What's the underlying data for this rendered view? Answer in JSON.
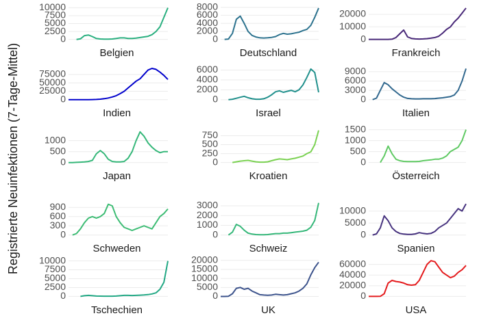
{
  "ylabel": "Registrierte Neuinfektionen (7-Tage-Mittel)",
  "chart_data": [
    {
      "type": "line",
      "title": "Belgien",
      "color": "#29af7f",
      "ylim": [
        -500,
        10300
      ],
      "yticks": [
        0,
        2500,
        5000,
        7500,
        10000
      ],
      "grid": true,
      "values": [
        null,
        null,
        0,
        200,
        1200,
        1400,
        900,
        300,
        150,
        100,
        100,
        150,
        300,
        500,
        500,
        300,
        300,
        400,
        600,
        800,
        1000,
        1500,
        2500,
        4000,
        7000,
        10000
      ]
    },
    {
      "type": "line",
      "title": "Deutschland",
      "color": "#2c728e",
      "ylim": [
        -400,
        8100
      ],
      "yticks": [
        0,
        2000,
        4000,
        6000,
        8000
      ],
      "grid": true,
      "values": [
        null,
        0,
        100,
        1500,
        5000,
        5800,
        4000,
        2000,
        1000,
        600,
        400,
        350,
        400,
        500,
        700,
        1200,
        1500,
        1300,
        1400,
        1600,
        1800,
        2200,
        2500,
        3500,
        5500,
        7800
      ]
    },
    {
      "type": "line",
      "title": "Frankreich",
      "color": "#482878",
      "ylim": [
        -1300,
        26000
      ],
      "yticks": [
        0,
        10000,
        20000
      ],
      "grid": true,
      "values": [
        0,
        0,
        0,
        0,
        0,
        0,
        200,
        1500,
        4500,
        7500,
        2000,
        800,
        400,
        300,
        400,
        600,
        1000,
        1500,
        2500,
        5000,
        8000,
        10000,
        14000,
        17000,
        21000,
        25000
      ]
    },
    {
      "type": "line",
      "title": "Indien",
      "color": "#0000cc",
      "ylim": [
        -4500,
        97000
      ],
      "yticks": [
        0,
        25000,
        50000,
        75000
      ],
      "grid": true,
      "values": [
        0,
        0,
        0,
        0,
        0,
        100,
        300,
        800,
        1500,
        3000,
        5000,
        8000,
        12000,
        18000,
        25000,
        35000,
        45000,
        55000,
        62000,
        75000,
        88000,
        93000,
        90000,
        82000,
        72000,
        60000
      ]
    },
    {
      "type": "line",
      "title": "Israel",
      "color": "#21908c",
      "ylim": [
        -300,
        6600
      ],
      "yticks": [
        0,
        2000,
        4000,
        6000
      ],
      "grid": true,
      "values": [
        null,
        null,
        0,
        100,
        300,
        500,
        700,
        400,
        200,
        100,
        100,
        200,
        500,
        1000,
        1600,
        1800,
        1500,
        1700,
        1900,
        1600,
        2000,
        3000,
        4500,
        6200,
        5500,
        1500
      ]
    },
    {
      "type": "line",
      "title": "Italien",
      "color": "#31688e",
      "ylim": [
        -500,
        10500
      ],
      "yticks": [
        0,
        3000,
        6000,
        9000
      ],
      "grid": true,
      "values": [
        null,
        0,
        500,
        3000,
        5500,
        4800,
        3500,
        2500,
        1500,
        800,
        400,
        300,
        250,
        250,
        300,
        300,
        300,
        350,
        500,
        600,
        800,
        1000,
        1500,
        3000,
        6000,
        10000
      ]
    },
    {
      "type": "line",
      "title": "Japan",
      "color": "#35b779",
      "ylim": [
        -70,
        1550
      ],
      "yticks": [
        0,
        500,
        1000
      ],
      "grid": true,
      "values": [
        0,
        0,
        10,
        20,
        30,
        50,
        100,
        400,
        550,
        400,
        150,
        50,
        30,
        30,
        50,
        200,
        500,
        1000,
        1400,
        1200,
        900,
        700,
        550,
        450,
        500,
        500
      ]
    },
    {
      "type": "line",
      "title": "Kroatien",
      "color": "#7ad151",
      "ylim": [
        -45,
        950
      ],
      "yticks": [
        0,
        250,
        500,
        750
      ],
      "grid": true,
      "values": [
        null,
        null,
        null,
        0,
        20,
        40,
        50,
        60,
        40,
        20,
        10,
        10,
        20,
        50,
        80,
        100,
        90,
        80,
        100,
        120,
        150,
        180,
        250,
        300,
        500,
        900
      ]
    },
    {
      "type": "line",
      "title": "Österreich",
      "color": "#5ec962",
      "ylim": [
        -75,
        1550
      ],
      "yticks": [
        0,
        500,
        1000,
        1500
      ],
      "grid": true,
      "values": [
        null,
        null,
        null,
        0,
        300,
        750,
        400,
        150,
        80,
        50,
        40,
        40,
        40,
        50,
        80,
        100,
        120,
        150,
        150,
        200,
        300,
        500,
        600,
        700,
        1000,
        1500
      ]
    },
    {
      "type": "line",
      "title": "Schweden",
      "color": "#3dbc74",
      "ylim": [
        -50,
        1060
      ],
      "yticks": [
        0,
        300,
        600,
        900
      ],
      "grid": true,
      "values": [
        null,
        0,
        50,
        200,
        400,
        550,
        600,
        550,
        600,
        700,
        1000,
        950,
        600,
        400,
        250,
        200,
        150,
        200,
        250,
        300,
        250,
        200,
        400,
        600,
        700,
        850
      ]
    },
    {
      "type": "line",
      "title": "Schweiz",
      "color": "#35b779",
      "ylim": [
        -160,
        3350
      ],
      "yticks": [
        0,
        1000,
        2000,
        3000
      ],
      "grid": true,
      "values": [
        null,
        null,
        0,
        300,
        1100,
        900,
        500,
        200,
        100,
        50,
        30,
        30,
        50,
        100,
        150,
        150,
        200,
        200,
        250,
        300,
        350,
        400,
        500,
        800,
        1500,
        3300
      ]
    },
    {
      "type": "line",
      "title": "Spanien",
      "color": "#46327e",
      "ylim": [
        -650,
        13600
      ],
      "yticks": [
        0,
        5000,
        10000
      ],
      "grid": true,
      "values": [
        null,
        0,
        500,
        3000,
        8000,
        6000,
        3000,
        1500,
        700,
        400,
        300,
        300,
        500,
        1000,
        700,
        500,
        700,
        1500,
        3000,
        4000,
        5000,
        7000,
        9000,
        11000,
        10000,
        13000
      ]
    },
    {
      "type": "line",
      "title": "Tschechien",
      "color": "#22a884",
      "ylim": [
        -500,
        10300
      ],
      "yticks": [
        0,
        2500,
        5000,
        7500,
        10000
      ],
      "grid": true,
      "values": [
        null,
        null,
        null,
        0,
        200,
        300,
        200,
        100,
        80,
        60,
        50,
        60,
        100,
        200,
        300,
        300,
        250,
        300,
        350,
        400,
        500,
        700,
        1000,
        2000,
        4000,
        10000
      ]
    },
    {
      "type": "line",
      "title": "UK",
      "color": "#3b528b",
      "ylim": [
        -950,
        20300
      ],
      "yticks": [
        0,
        5000,
        10000,
        15000,
        20000
      ],
      "grid": true,
      "values": [
        0,
        0,
        100,
        1500,
        4500,
        5000,
        4000,
        4500,
        3000,
        2000,
        1000,
        800,
        700,
        800,
        1200,
        1000,
        800,
        1000,
        1500,
        2000,
        3000,
        4500,
        7000,
        12000,
        16000,
        19000
      ]
    },
    {
      "type": "line",
      "title": "USA",
      "color": "#e41a1c",
      "ylim": [
        -3300,
        68500
      ],
      "yticks": [
        0,
        20000,
        40000,
        60000
      ],
      "grid": true,
      "values": [
        0,
        0,
        0,
        100,
        5000,
        25000,
        30000,
        28000,
        27000,
        25000,
        22000,
        21000,
        22000,
        30000,
        45000,
        60000,
        67000,
        65000,
        55000,
        45000,
        40000,
        35000,
        38000,
        45000,
        50000,
        58000
      ]
    }
  ]
}
